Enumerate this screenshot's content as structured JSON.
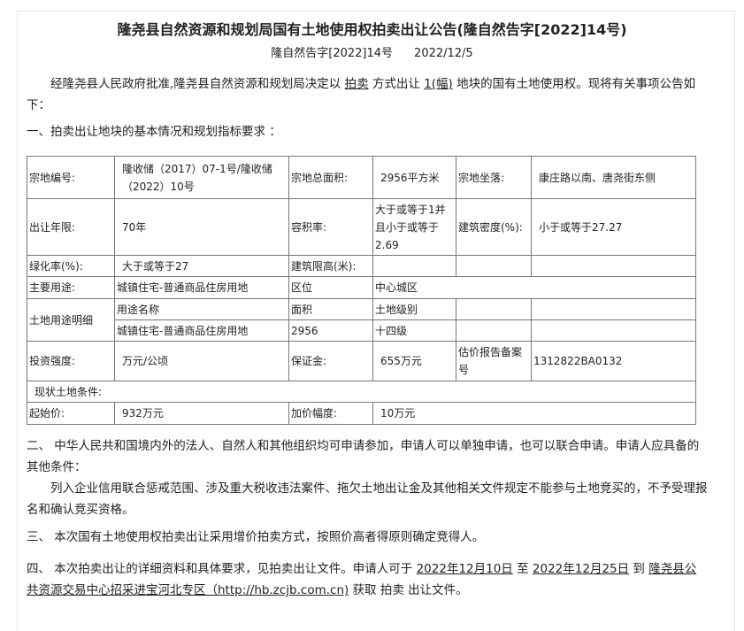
{
  "title": "隆尧县自然资源和规划局国有土地使用权拍卖出让公告(隆自然告字[2022]14号)",
  "doc_no": "隆自然告字[2022]14号",
  "date": "2022/12/5",
  "intro": {
    "a": "经隆尧县人民政府批准,隆尧县自然资源和规划局决定以 ",
    "method": "拍卖",
    "b": " 方式出让 ",
    "count": "1(幅)",
    "c": " 地块的国有土地使用权。现将有关事项公告如下："
  },
  "section1": "一、拍卖出让地块的基本情况和规划指标要求 ：",
  "table": {
    "r1": [
      "宗地编号:",
      "隆收储（2017）07-1号/隆收储（2022）10号",
      "宗地总面积:",
      "2956平方米",
      "宗地坐落:",
      "康庄路以南、唐尧街东侧"
    ],
    "r2": [
      "出让年限:",
      "70年",
      "容积率:",
      "大于或等于1并且小于或等于2.69",
      "建筑密度(%):",
      "小于或等于27.27"
    ],
    "r3": [
      "绿化率(%):",
      "大于或等于27",
      "建筑限高(米):"
    ],
    "r4": [
      "主要用途:",
      "城镇住宅-普通商品住房用地",
      "区位",
      "中心城区"
    ],
    "r5": [
      "土地用途明细",
      "用途名称",
      "面积",
      "土地级别"
    ],
    "r6": [
      "城镇住宅-普通商品住房用地",
      "2956",
      "十四级"
    ],
    "r7": [
      "投资强度:",
      "万元/公顷",
      "保证金:",
      "655万元",
      "估价报告备案号",
      "1312822BA0132"
    ],
    "r8": [
      "现状土地条件:"
    ],
    "r9": [
      "起始价:",
      "932万元",
      "加价幅度:",
      "10万元"
    ]
  },
  "section2": "二、 中华人民共和国境内外的法人、自然人和其他组织均可申请参加，申请人可以单独申请，也可以联合申请。申请人应具备的其他条件：",
  "section2b": "列入企业信用联合惩戒范围、涉及重大税收违法案件、拖欠土地出让金及其他相关文件规定不能参与土地竞买的，不予受理报名和确认竞买资格。",
  "section3": "三、 本次国有土地使用权拍卖出让采用增价拍卖方式，按照价高者得原则确定竞得人。",
  "section4": {
    "a": "四、 本次拍卖出让的详细资料和具体要求，见拍卖出让文件。申请人可于 ",
    "start": "2022年12月10日",
    "b": " 至 ",
    "end": "2022年12月25日",
    "c": " 到 ",
    "place": "隆尧县公共资源交易中心招采进宝河北专区（http://hb.zcjb.com.cn)",
    "d": " 获取 拍卖 出让文件。"
  }
}
